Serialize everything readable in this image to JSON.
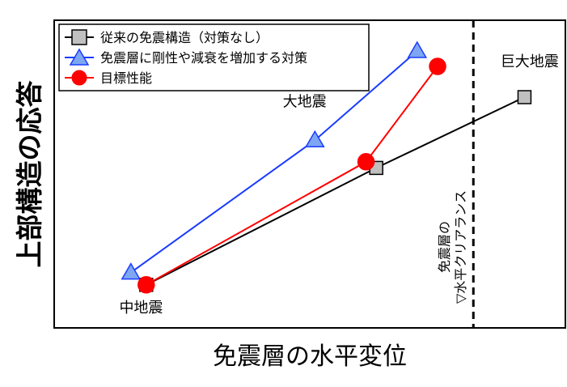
{
  "chart_data": {
    "type": "line",
    "title": "",
    "xlabel": "免震層の水平変位",
    "ylabel": "上部構造の応答",
    "x_ticks_shown": false,
    "y_ticks_shown": false,
    "xlim": [
      0,
      10
    ],
    "ylim": [
      0,
      10
    ],
    "grid": false,
    "legend_position": "top-left",
    "series": [
      {
        "name": "従来の免震構造（対策なし）",
        "marker": "square",
        "color": "#000000",
        "marker_fill": "#c0c0c0",
        "x": [
          1.8,
          6.3,
          9.2
        ],
        "y": [
          1.4,
          5.2,
          7.5
        ]
      },
      {
        "name": "免震層に剛性や減衰を増加する対策",
        "marker": "triangle",
        "color": "#1a3cff",
        "marker_fill": "#7ea6f2",
        "x": [
          1.5,
          5.1,
          7.1
        ],
        "y": [
          1.8,
          6.1,
          9.0
        ]
      },
      {
        "name": "目標性能",
        "marker": "circle",
        "color": "#ff0000",
        "marker_fill": "#ff0000",
        "x": [
          1.8,
          6.1,
          7.5
        ],
        "y": [
          1.4,
          5.4,
          8.5
        ]
      }
    ],
    "annotations": [
      {
        "text": "中地震",
        "x": 1.7,
        "y": 0.5
      },
      {
        "text": "大地震",
        "x": 4.9,
        "y": 7.2
      },
      {
        "text": "巨大地震",
        "x": 9.3,
        "y": 8.5
      }
    ],
    "reference_line": {
      "x": 8.2,
      "label_line1": "免震層の",
      "label_line2": "▽水平クリアランス"
    }
  }
}
